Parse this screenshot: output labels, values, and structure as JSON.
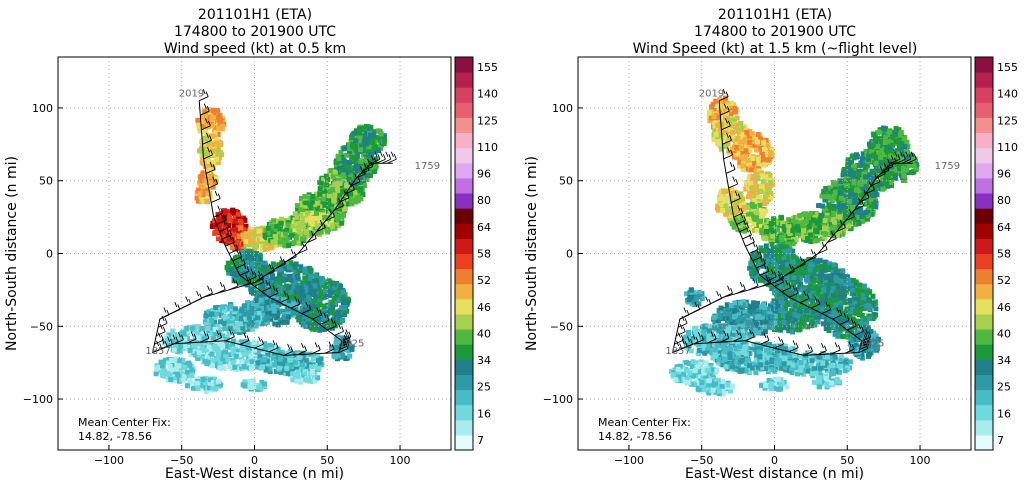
{
  "chart_data": [
    {
      "type": "heatmap",
      "title_lines": [
        "201101H1 (ETA)",
        "174800 to 201900 UTC",
        "Wind speed (kt) at 0.5 km"
      ],
      "xlabel": "East-West distance (n mi)",
      "ylabel": "North-South distance (n mi)",
      "xlim": [
        -135,
        135
      ],
      "ylim": [
        -135,
        135
      ],
      "xticks": [
        "−100",
        "−50",
        "0",
        "50",
        "100"
      ],
      "yticks": [
        "−100",
        "−50",
        "0",
        "50",
        "100"
      ],
      "grid": true,
      "annotation_lines": [
        "Mean Center Fix:",
        "14.82, -78.56"
      ],
      "flight_times": [
        "2019",
        "1759",
        "1857",
        "1925"
      ],
      "colorbar_ticks": [
        "155",
        "140",
        "125",
        "110",
        "96",
        "80",
        "64",
        "58",
        "52",
        "46",
        "40",
        "34",
        "25",
        "16",
        "7"
      ]
    },
    {
      "type": "heatmap",
      "title_lines": [
        "201101H1 (ETA)",
        "174800 to 201900 UTC",
        "Wind Speed (kt) at 1.5 km (~flight level)"
      ],
      "xlabel": "East-West distance (n mi)",
      "ylabel": "North-South distance (n mi)",
      "xlim": [
        -135,
        135
      ],
      "ylim": [
        -135,
        135
      ],
      "xticks": [
        "−100",
        "−50",
        "0",
        "50",
        "100"
      ],
      "yticks": [
        "−100",
        "−50",
        "0",
        "50",
        "100"
      ],
      "grid": true,
      "annotation_lines": [
        "Mean Center Fix:",
        "14.82, -78.56"
      ],
      "flight_times": [
        "2019",
        "1759",
        "1857",
        "1925"
      ],
      "colorbar_ticks": [
        "155",
        "140",
        "125",
        "110",
        "96",
        "80",
        "64",
        "58",
        "52",
        "46",
        "40",
        "34",
        "25",
        "16",
        "7"
      ]
    }
  ],
  "colorscale": [
    "#e6fbfb",
    "#a8ecee",
    "#6fd9dd",
    "#48bcc6",
    "#2d9aa6",
    "#1f7f8a",
    "#1c9a3a",
    "#4fb840",
    "#a8d050",
    "#e6e060",
    "#f2b040",
    "#f08030",
    "#e84020",
    "#d01818",
    "#a00000",
    "#6a0000",
    "#8a30c0",
    "#c070e0",
    "#e0a8f0",
    "#f2c8e8",
    "#f8b0c8",
    "#f49090",
    "#e86070",
    "#d84060",
    "#b82050",
    "#8a1040"
  ],
  "colors": {
    "flight_track": "#000000",
    "grid": "#b0b0b0",
    "flight_label": "#666666"
  }
}
